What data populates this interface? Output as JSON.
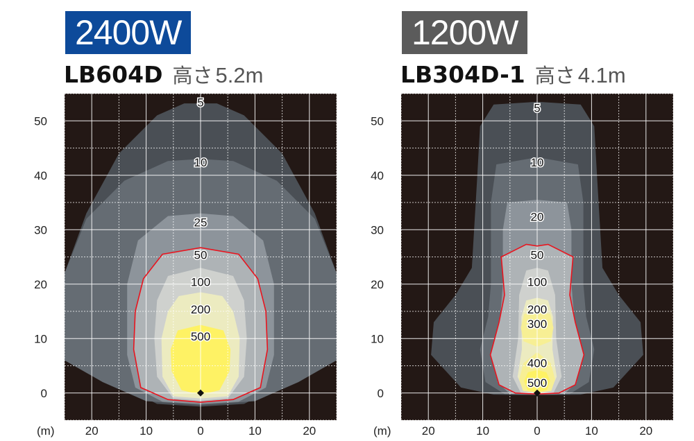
{
  "chart_data": [
    {
      "type": "heatmap",
      "badge": "2400W",
      "badge_color": "#0d4a9a",
      "model": "LB604D",
      "height_label": "高さ",
      "height_value": "5.2m",
      "x_unit": "(m)",
      "x_ticks": [
        "20",
        "10",
        "0",
        "10",
        "20"
      ],
      "y_ticks": [
        "0",
        "10",
        "20",
        "30",
        "40",
        "50"
      ],
      "xlim": [
        -25,
        25
      ],
      "ylim": [
        -5,
        55
      ],
      "grid": true,
      "background_color": "#231815",
      "highlight_color": "#e8141e",
      "highlight_contour": "50",
      "lamp_position": [
        0,
        0
      ],
      "contours": [
        {
          "label": "5",
          "label_y": 53.2,
          "extent_x": [
            -25,
            25
          ],
          "extent_y": [
            -2.5,
            53.2
          ],
          "color": "#4a4f55"
        },
        {
          "label": "10",
          "label_y": 42.2,
          "extent_x": [
            -25,
            25
          ],
          "extent_y": [
            -2.2,
            43
          ],
          "color": "#656c73"
        },
        {
          "label": "25",
          "label_y": 31.2,
          "extent_x": [
            -13.5,
            13.5
          ],
          "extent_y": [
            -2.0,
            33
          ],
          "color": "#8d949b"
        },
        {
          "label": "50",
          "label_y": 25.2,
          "extent_x": [
            -12.3,
            12.3
          ],
          "extent_y": [
            -1.7,
            26.7
          ],
          "color": "#aeb3b6"
        },
        {
          "label": "100",
          "label_y": 20.2,
          "extent_x": [
            -8.5,
            8.5
          ],
          "extent_y": [
            -1.4,
            23
          ],
          "color": "#cfd1ce"
        },
        {
          "label": "200",
          "label_y": 15.2,
          "extent_x": [
            -7.2,
            7.2
          ],
          "extent_y": [
            -1.0,
            18.5
          ],
          "color": "#ecebc0"
        },
        {
          "label": "500",
          "label_y": 10.2,
          "extent_x": [
            -5.5,
            5.5
          ],
          "extent_y": [
            -0.3,
            12.5
          ],
          "color": "#fef264"
        }
      ]
    },
    {
      "type": "heatmap",
      "badge": "1200W",
      "badge_color": "#5b5b5b",
      "model": "LB304D-1",
      "height_label": "高さ",
      "height_value": "4.1m",
      "x_unit": "(m)",
      "x_ticks": [
        "20",
        "10",
        "0",
        "10",
        "20"
      ],
      "y_ticks": [
        "0",
        "10",
        "20",
        "30",
        "40",
        "50"
      ],
      "xlim": [
        -25,
        25
      ],
      "ylim": [
        -5,
        55
      ],
      "grid": true,
      "background_color": "#231815",
      "highlight_color": "#e8141e",
      "highlight_contour": "50",
      "lamp_position": [
        0,
        0
      ],
      "contours": [
        {
          "label": "5",
          "label_y": 52.2,
          "extent_x": [
            -19.5,
            19.5
          ],
          "extent_y": [
            -0.4,
            53.5
          ],
          "color": "#4a4f55"
        },
        {
          "label": "10",
          "label_y": 42.2,
          "extent_x": [
            -10.5,
            10.5
          ],
          "extent_y": [
            -0.3,
            43.3
          ],
          "color": "#656c73"
        },
        {
          "label": "20",
          "label_y": 32.2,
          "extent_x": [
            -7.8,
            7.8
          ],
          "extent_y": [
            -0.3,
            35.5
          ],
          "color": "#8d949b"
        },
        {
          "label": "50",
          "label_y": 25.2,
          "extent_x": [
            -8.6,
            8.6
          ],
          "extent_y": [
            -0.2,
            27.3
          ],
          "color": "#aeb3b6"
        },
        {
          "label": "100",
          "label_y": 20.2,
          "extent_x": [
            -4.5,
            4.5
          ],
          "extent_y": [
            -0.1,
            23
          ],
          "color": "#cfd1ce"
        },
        {
          "label": "200",
          "label_y": 15.2,
          "extent_x": [
            -3.6,
            3.6
          ],
          "extent_y": [
            0,
            17.5
          ],
          "color": "#ecebc0"
        },
        {
          "label": "300",
          "label_y": 12.5,
          "extent_x": [
            -3.0,
            3.0
          ],
          "extent_y": [
            8.5,
            15
          ],
          "color": "#f7ef94"
        },
        {
          "label": "400",
          "label_y": 5.3,
          "extent_x": [
            -3.3,
            3.3
          ],
          "extent_y": [
            0,
            7.5
          ],
          "color": "#f7ef94"
        },
        {
          "label": "500",
          "label_y": 1.7,
          "extent_x": [
            -2.4,
            2.4
          ],
          "extent_y": [
            0.2,
            4.2
          ],
          "color": "#fef264"
        }
      ]
    }
  ]
}
